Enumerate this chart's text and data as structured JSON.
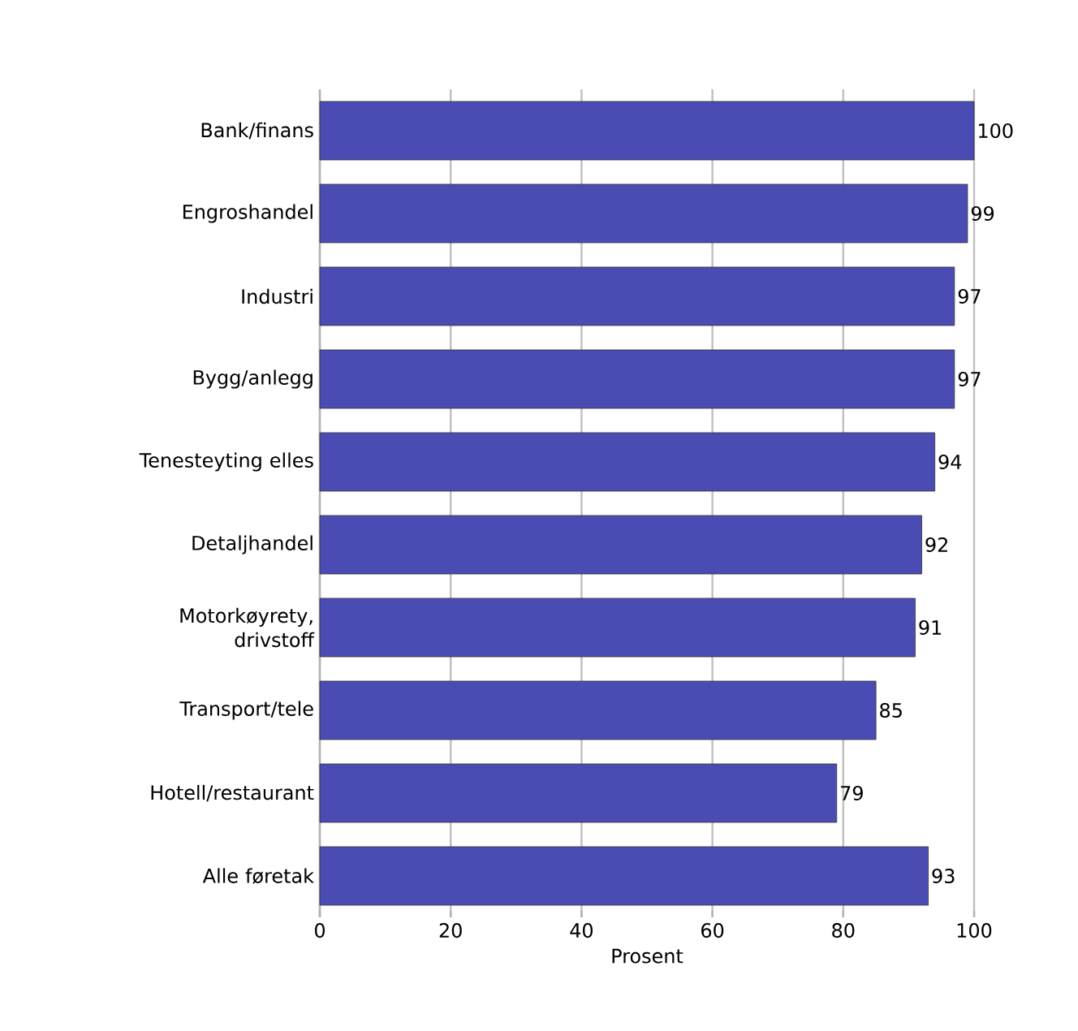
{
  "chart_data": {
    "type": "bar",
    "orientation": "horizontal",
    "xlabel": "Prosent",
    "categories": [
      "Bank/finans",
      "Engroshandel",
      "Industri",
      "Bygg/anlegg",
      "Tenesteyting elles",
      "Detaljhandel",
      "Motorkøyrety, drivstoff",
      "Transport/tele",
      "Hotell/restaurant",
      "Alle føretak"
    ],
    "values": [
      100,
      99,
      97,
      97,
      94,
      92,
      91,
      85,
      79,
      93
    ],
    "color": "#4b4bb4",
    "xlim": [
      0,
      100
    ],
    "xticks": [
      0,
      20,
      40,
      60,
      80,
      100
    ],
    "grid": "x",
    "data_labels": true
  }
}
